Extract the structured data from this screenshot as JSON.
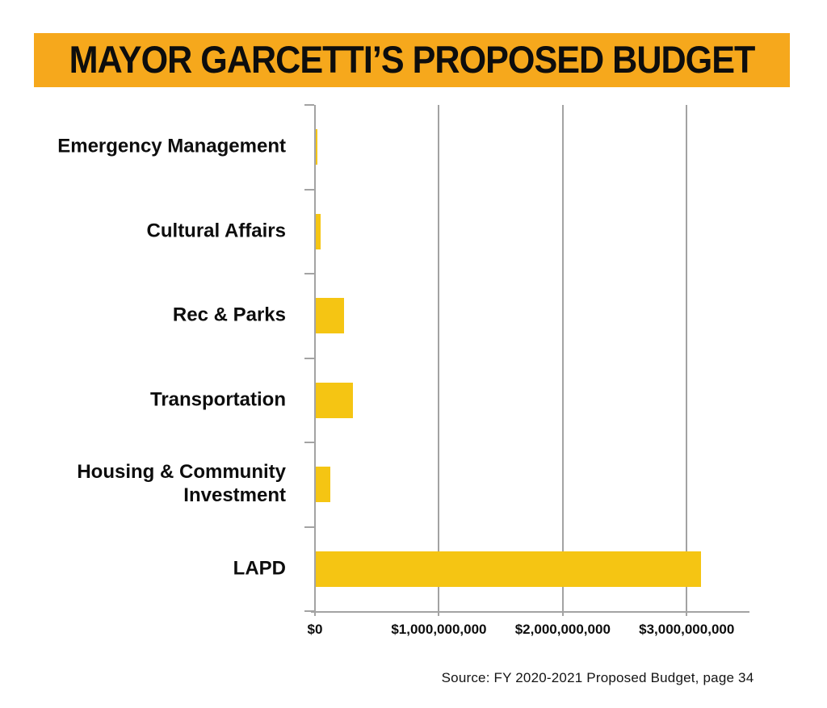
{
  "title": "MAYOR GARCETTI’S PROPOSED BUDGET",
  "source_note": "Source: FY 2020-2021 Proposed Budget, page 34",
  "colors": {
    "title_band": "#f6a81c",
    "bar": "#f5c513",
    "axis": "#a3a3a3",
    "text": "#0d0d0d",
    "background": "#ffffff"
  },
  "chart_data": {
    "type": "bar",
    "orientation": "horizontal",
    "title": "MAYOR GARCETTI’S PROPOSED BUDGET",
    "xlabel": "",
    "ylabel": "",
    "categories": [
      "Emergency Management",
      "Cultural Affairs",
      "Rec & Parks",
      "Transportation",
      "Housing & Community Investment",
      "LAPD"
    ],
    "values": [
      10000000,
      40000000,
      230000000,
      300000000,
      115000000,
      3110000000
    ],
    "x_ticks": [
      {
        "value": 0,
        "label": "$0"
      },
      {
        "value": 1000000000,
        "label": "$1,000,000,000"
      },
      {
        "value": 2000000000,
        "label": "$2,000,000,000"
      },
      {
        "value": 3000000000,
        "label": "$3,000,000,000"
      }
    ],
    "xlim": [
      0,
      3520000000
    ],
    "grid": "vertical-gridlines-on",
    "legend": "none",
    "bar_color": "#f5c513",
    "source": "Source: FY 2020-2021 Proposed Budget, page 34"
  }
}
